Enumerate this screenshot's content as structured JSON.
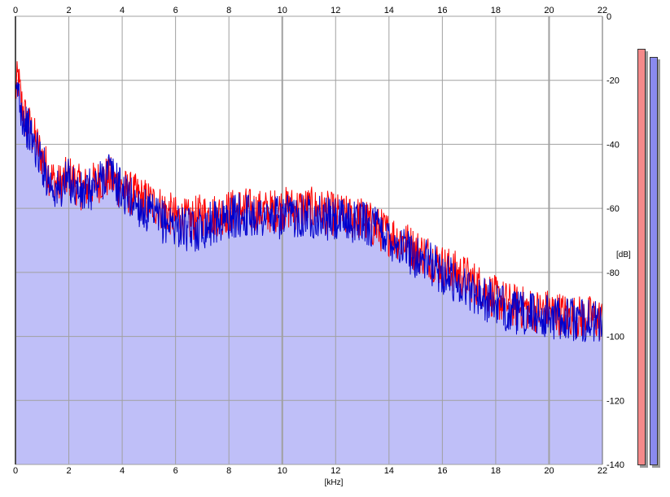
{
  "colors": {
    "background": "#ffffff",
    "grid": "#a0a0a0",
    "fill": "#bfbff8",
    "left_channel": "#ff0000",
    "right_channel": "#0000cc",
    "meter_left": "#f58a8a",
    "meter_right": "#8a8aee"
  },
  "chart_data": {
    "type": "line",
    "title": "",
    "xlabel": "[kHz]",
    "ylabel": "[dB]",
    "xlim": [
      0,
      22
    ],
    "ylim": [
      -140,
      0
    ],
    "x_ticks": [
      "0",
      "2",
      "4",
      "6",
      "8",
      "10",
      "12",
      "14",
      "16",
      "18",
      "20",
      "22"
    ],
    "y_ticks": [
      "0",
      "-20",
      "-40",
      "-60",
      "-80",
      "-100",
      "-120",
      "-140"
    ],
    "grid": true,
    "legend": "none",
    "series": [
      {
        "color": "#ff0000",
        "x": [
          0,
          0.1,
          0.2,
          0.3,
          0.5,
          0.7,
          1,
          1.3,
          1.6,
          2,
          2.5,
          3,
          3.5,
          4,
          4.5,
          5,
          5.5,
          6,
          6.5,
          7,
          7.5,
          8,
          8.5,
          9,
          9.5,
          10,
          10.5,
          11,
          11.5,
          12,
          12.5,
          13,
          13.5,
          14,
          14.5,
          15,
          15.5,
          16,
          16.5,
          17,
          17.5,
          18,
          18.5,
          19,
          19.5,
          20,
          20.5,
          21,
          21.5,
          22
        ],
        "y": [
          -24,
          -19,
          -26,
          -30,
          -34,
          -38,
          -44,
          -50,
          -53,
          -50,
          -54,
          -52,
          -50,
          -54,
          -56,
          -58,
          -60,
          -63,
          -64,
          -62,
          -62,
          -61,
          -60,
          -61,
          -61,
          -60,
          -60,
          -60,
          -61,
          -62,
          -63,
          -63,
          -66,
          -68,
          -70,
          -73,
          -75,
          -78,
          -80,
          -82,
          -85,
          -88,
          -90,
          -91,
          -92,
          -92,
          -93,
          -94,
          -94,
          -95
        ]
      },
      {
        "color": "#0000cc",
        "x": [
          0,
          0.1,
          0.2,
          0.3,
          0.5,
          0.7,
          1,
          1.3,
          1.6,
          2,
          2.5,
          3,
          3.5,
          4,
          4.5,
          5,
          5.5,
          6,
          6.5,
          7,
          7.5,
          8,
          8.5,
          9,
          9.5,
          10,
          10.5,
          11,
          11.5,
          12,
          12.5,
          13,
          13.5,
          14,
          14.5,
          15,
          15.5,
          16,
          16.5,
          17,
          17.5,
          18,
          18.5,
          19,
          19.5,
          20,
          20.5,
          21,
          21.5,
          22
        ],
        "y": [
          -27,
          -22,
          -28,
          -32,
          -36,
          -40,
          -46,
          -52,
          -55,
          -51,
          -56,
          -53,
          -48,
          -55,
          -58,
          -62,
          -64,
          -65,
          -67,
          -66,
          -64,
          -63,
          -62,
          -62,
          -63,
          -63,
          -62,
          -62,
          -63,
          -64,
          -64,
          -64,
          -66,
          -69,
          -72,
          -75,
          -77,
          -80,
          -83,
          -85,
          -88,
          -90,
          -92,
          -93,
          -93,
          -94,
          -94,
          -95,
          -95,
          -96
        ]
      }
    ]
  },
  "meters": {
    "left_level": 0.985,
    "right_level": 0.965
  }
}
